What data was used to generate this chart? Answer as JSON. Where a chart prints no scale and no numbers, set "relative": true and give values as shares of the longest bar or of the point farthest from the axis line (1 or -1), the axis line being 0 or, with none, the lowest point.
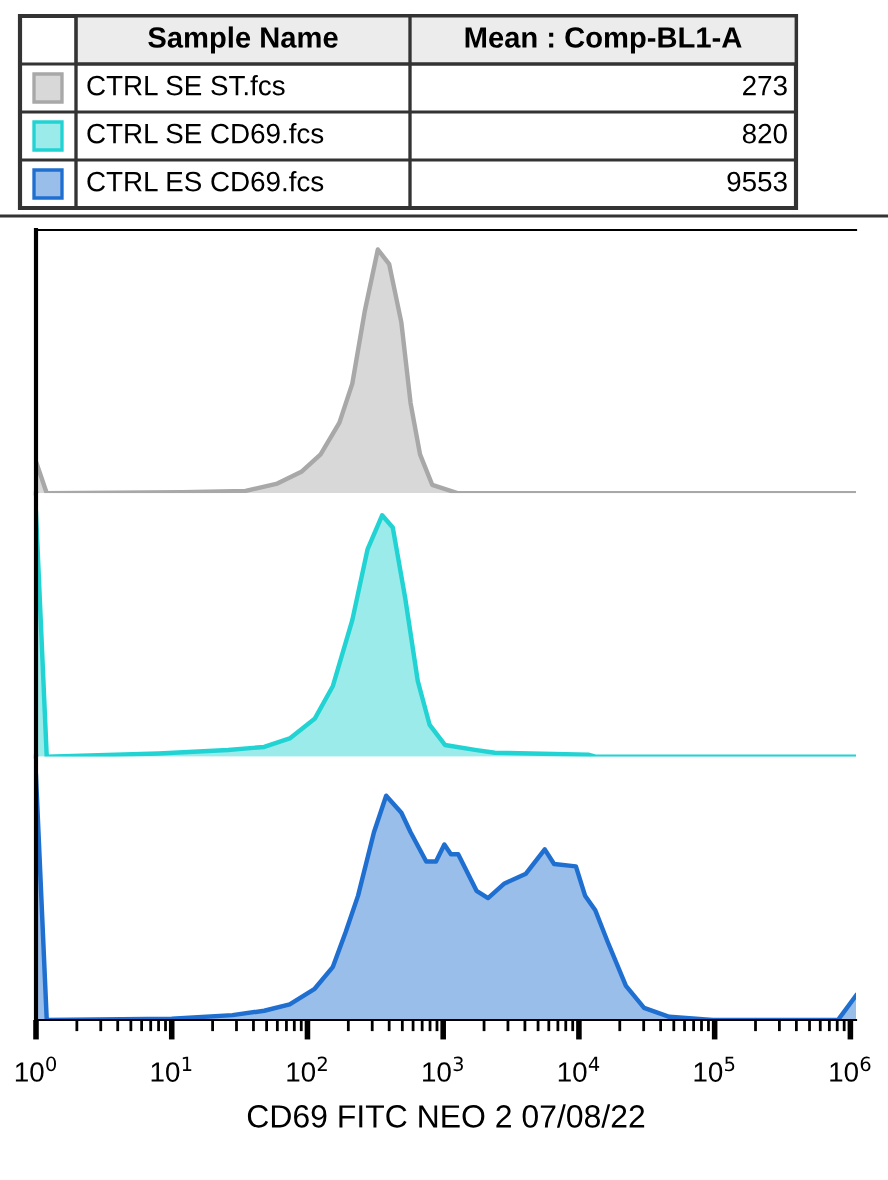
{
  "chart_data": [
    {
      "type": "area",
      "relative": true,
      "log": "x",
      "xlim": [
        1,
        1100000
      ],
      "tick_labels": false,
      "legend": "top",
      "legend_title": "Sample Name",
      "annotations": [
        "Mean : Comp-BL1-A",
        "273"
      ],
      "series": [
        {
          "name": "CTRL SE ST.fcs",
          "color": "#a8a8a8",
          "x": [
            1,
            1.2,
            12,
            35,
            60,
            91,
            125,
            172,
            214,
            265,
            330,
            400,
            492,
            575,
            675,
            830,
            1290,
            1100000
          ],
          "values": [
            0.13,
            0,
            0.005,
            0.01,
            0.04,
            0.09,
            0.16,
            0.29,
            0.45,
            0.75,
            1.0,
            0.94,
            0.7,
            0.37,
            0.16,
            0.035,
            0,
            0
          ]
        }
      ]
    },
    {
      "type": "area",
      "relative": true,
      "log": "x",
      "xlim": [
        1,
        1100000
      ],
      "tick_labels": false,
      "annotations": [
        "820"
      ],
      "series": [
        {
          "name": "CTRL SE CD69.fcs",
          "color": "#22d3d3",
          "x": [
            1,
            1.2,
            8,
            26,
            48,
            74,
            113,
            154,
            214,
            277,
            355,
            425,
            525,
            650,
            795,
            1030,
            1760,
            2400,
            11700,
            13200,
            1100000
          ],
          "values": [
            1.0,
            0,
            0.013,
            0.027,
            0.04,
            0.075,
            0.155,
            0.29,
            0.56,
            0.85,
            0.99,
            0.94,
            0.65,
            0.31,
            0.13,
            0.048,
            0.027,
            0.016,
            0.008,
            0,
            0
          ]
        }
      ]
    },
    {
      "type": "area",
      "relative": true,
      "log": "x",
      "xlim": [
        1,
        1100000
      ],
      "tick_labels": "x",
      "xlabel": "CD69 FITC NEO 2 07/08/22",
      "annotations": [
        "9553"
      ],
      "xticks": [
        {
          "value": 1,
          "label": "10$^{0}$"
        },
        {
          "value": 10,
          "label": "10$^{1}$"
        },
        {
          "value": 100,
          "label": "10$^{2}$"
        },
        {
          "value": 1000,
          "label": "10$^{3}$"
        },
        {
          "value": 10000,
          "label": "10$^{4}$"
        },
        {
          "value": 100000,
          "label": "10$^{5}$"
        },
        {
          "value": 1000000,
          "label": "10$^{6}$"
        }
      ],
      "series": [
        {
          "name": "CTRL ES CD69.fcs",
          "color": "#1f6fd0",
          "x": [
            1,
            1.2,
            10,
            28,
            48,
            74,
            113,
            154,
            191,
            236,
            309,
            380,
            492,
            575,
            750,
            885,
            1020,
            1140,
            1290,
            1760,
            2140,
            2830,
            4070,
            5600,
            6560,
            9500,
            11100,
            13200,
            16300,
            22200,
            30200,
            46300,
            97000,
            810000,
            1100000
          ],
          "values": [
            1.0,
            0,
            0.005,
            0.02,
            0.038,
            0.064,
            0.128,
            0.218,
            0.36,
            0.51,
            0.77,
            0.92,
            0.85,
            0.77,
            0.65,
            0.65,
            0.72,
            0.68,
            0.68,
            0.53,
            0.5,
            0.56,
            0.6,
            0.7,
            0.64,
            0.63,
            0.51,
            0.45,
            0.32,
            0.14,
            0.05,
            0.013,
            0,
            0,
            0.1
          ]
        }
      ]
    }
  ]
}
